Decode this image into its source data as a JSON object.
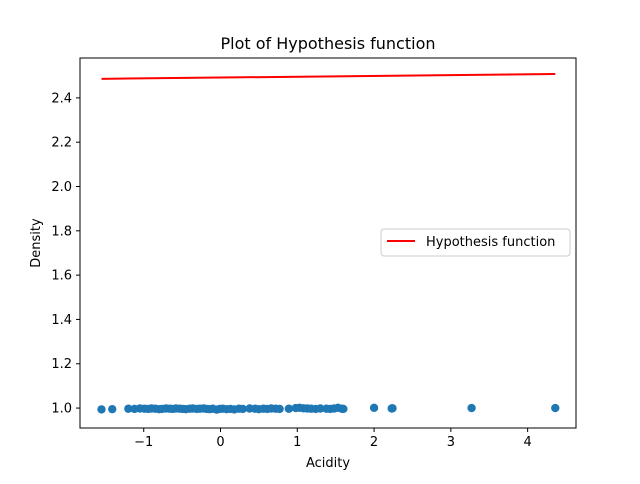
{
  "chart_data": {
    "type": "scatter",
    "title": "Plot of Hypothesis function",
    "xlabel": "Acidity",
    "ylabel": "Density",
    "xlim": [
      -1.83,
      4.63
    ],
    "ylim": [
      0.91,
      2.58
    ],
    "xticks": [
      -1,
      0,
      1,
      2,
      3,
      4
    ],
    "xtick_labels": [
      "−1",
      "0",
      "1",
      "2",
      "3",
      "4"
    ],
    "yticks": [
      1.0,
      1.2,
      1.4,
      1.6,
      1.8,
      2.0,
      2.2,
      2.4
    ],
    "ytick_labels": [
      "1.0",
      "1.2",
      "1.4",
      "1.6",
      "1.8",
      "2.0",
      "2.2",
      "2.4"
    ],
    "grid": false,
    "legend_position": "center-right",
    "series": [
      {
        "kind": "line",
        "name": "Hypothesis function",
        "color": "#ff0000",
        "x": [
          -1.55,
          4.36
        ],
        "y": [
          2.486,
          2.508
        ]
      },
      {
        "kind": "scatter",
        "color": "#1f77b4",
        "x": [
          -1.55,
          -1.41,
          -1.2,
          -1.12,
          -1.05,
          -0.99,
          -0.94,
          -0.9,
          -0.85,
          -0.8,
          -0.76,
          -0.71,
          -0.66,
          -0.62,
          -0.58,
          -0.53,
          -0.49,
          -0.45,
          -0.4,
          -0.36,
          -0.31,
          -0.27,
          -0.22,
          -0.18,
          -0.14,
          -0.1,
          -0.05,
          -0.01,
          0.03,
          0.08,
          0.13,
          0.18,
          0.24,
          0.29,
          0.38,
          0.45,
          0.5,
          0.56,
          0.61,
          0.66,
          0.72,
          0.77,
          0.89,
          0.98,
          1.03,
          1.08,
          1.13,
          1.18,
          1.24,
          1.3,
          1.38,
          1.43,
          1.48,
          1.53,
          1.58,
          1.6,
          2.0,
          2.23,
          2.24,
          3.27,
          4.36
        ],
        "y": [
          0.994,
          0.995,
          0.997,
          0.996,
          0.998,
          0.997,
          0.996,
          0.998,
          0.997,
          0.995,
          0.996,
          0.998,
          0.997,
          0.996,
          0.998,
          0.997,
          0.996,
          0.995,
          0.997,
          0.998,
          0.996,
          0.997,
          0.998,
          0.996,
          0.995,
          0.997,
          0.993,
          0.996,
          0.997,
          0.995,
          0.996,
          0.994,
          0.997,
          0.996,
          0.998,
          0.997,
          0.995,
          0.997,
          0.996,
          0.998,
          0.997,
          0.996,
          0.997,
          1.0,
          1.001,
          0.999,
          0.998,
          0.997,
          0.996,
          0.998,
          0.997,
          0.996,
          0.998,
          1.001,
          0.997,
          0.996,
          1.001,
          0.998,
          0.999,
          1.0,
          1.0
        ]
      }
    ]
  }
}
